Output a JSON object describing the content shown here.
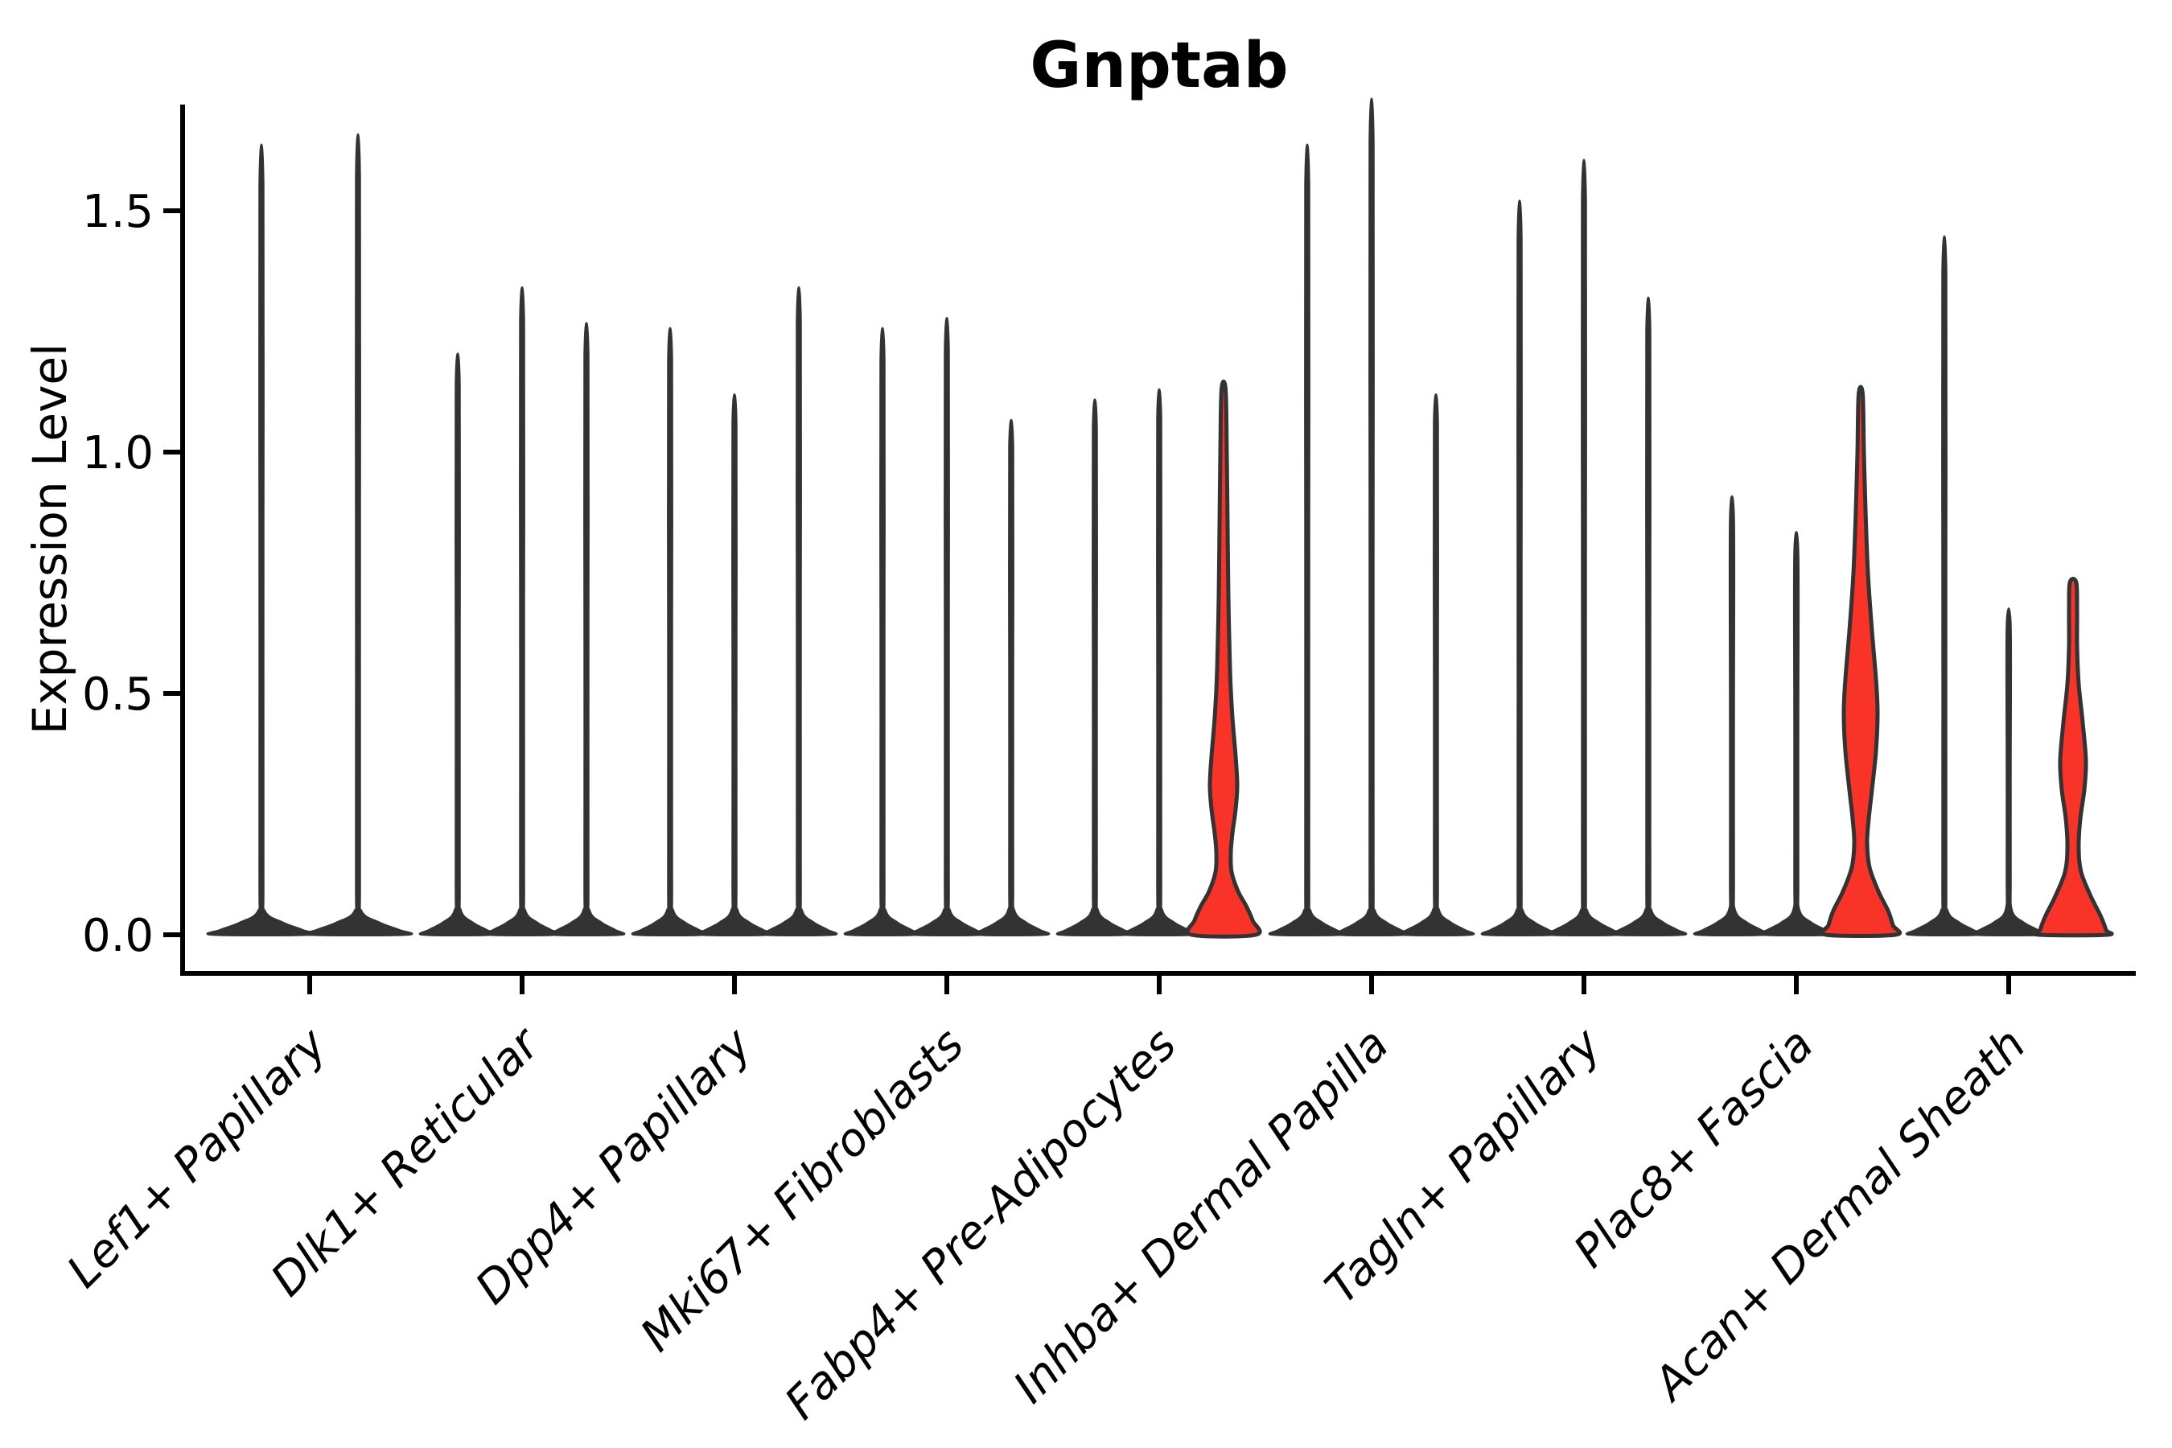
{
  "title": "Gnptab",
  "chart_data": {
    "type": "violin",
    "title": "Gnptab",
    "xlabel": "",
    "ylabel": "Expression Level",
    "ylim": [
      0,
      1.72
    ],
    "yticks": [
      0.0,
      0.5,
      1.0,
      1.5
    ],
    "ytick_labels": [
      "0.0",
      "0.5",
      "1.0",
      "1.5"
    ],
    "grid": false,
    "legend": "none",
    "background": "#ffffff",
    "categories": [
      "Lef1+ Papillary",
      "Dlk1+ Reticular",
      "Dpp4+ Papillary",
      "Mki67+ Fibroblasts",
      "Fabp4+ Pre-Adipocytes",
      "Inhba+ Dermal Papilla",
      "Tagln+ Papillary",
      "Plac8+ Fascia",
      "Acan+ Dermal Sheath"
    ],
    "description": "Violin plot of Gnptab expression; each category holds 2-3 violins (one per replicate). Most distributions collapse to a flat base at 0 with a thin spike to the maximum. Three violins (marked highlighted) show a visible red-filled density bulge.",
    "groups": [
      {
        "category": "Lef1+ Papillary",
        "violins": [
          {
            "max": 1.55,
            "highlighted": false
          },
          {
            "max": 1.57,
            "highlighted": false
          }
        ]
      },
      {
        "category": "Dlk1+ Reticular",
        "violins": [
          {
            "max": 1.14,
            "highlighted": false
          },
          {
            "max": 1.27,
            "highlighted": false
          },
          {
            "max": 1.2,
            "highlighted": false
          }
        ]
      },
      {
        "category": "Dpp4+ Papillary",
        "violins": [
          {
            "max": 1.19,
            "highlighted": false
          },
          {
            "max": 1.06,
            "highlighted": false
          },
          {
            "max": 1.27,
            "highlighted": false
          }
        ]
      },
      {
        "category": "Mki67+ Fibroblasts",
        "violins": [
          {
            "max": 1.19,
            "highlighted": false
          },
          {
            "max": 1.21,
            "highlighted": false
          },
          {
            "max": 1.01,
            "highlighted": false
          }
        ]
      },
      {
        "category": "Fabp4+ Pre-Adipocytes",
        "violins": [
          {
            "max": 1.05,
            "highlighted": false
          },
          {
            "max": 1.07,
            "highlighted": false
          },
          {
            "max": 1.13,
            "highlighted": true,
            "profile": [
              [
                1.13,
                2.5
              ],
              [
                1.0,
                4
              ],
              [
                0.85,
                5
              ],
              [
                0.7,
                6
              ],
              [
                0.55,
                8
              ],
              [
                0.45,
                11
              ],
              [
                0.37,
                15
              ],
              [
                0.31,
                17
              ],
              [
                0.26,
                15
              ],
              [
                0.21,
                11
              ],
              [
                0.17,
                9
              ],
              [
                0.13,
                10
              ],
              [
                0.09,
                18
              ],
              [
                0.06,
                28
              ],
              [
                0.03,
                36
              ],
              [
                0.0,
                40
              ]
            ]
          }
        ]
      },
      {
        "category": "Inhba+ Dermal Papilla",
        "violins": [
          {
            "max": 1.55,
            "highlighted": false
          },
          {
            "max": 1.64,
            "highlighted": false
          },
          {
            "max": 1.06,
            "highlighted": false
          }
        ]
      },
      {
        "category": "Tagln+ Papillary",
        "violins": [
          {
            "max": 1.44,
            "highlighted": false
          },
          {
            "max": 1.52,
            "highlighted": false
          },
          {
            "max": 1.25,
            "highlighted": false
          }
        ]
      },
      {
        "category": "Plac8+ Fascia",
        "violins": [
          {
            "max": 0.86,
            "highlighted": false
          },
          {
            "max": 0.79,
            "highlighted": false
          },
          {
            "max": 1.12,
            "highlighted": true,
            "profile": [
              [
                1.12,
                2.5
              ],
              [
                1.0,
                4
              ],
              [
                0.88,
                6
              ],
              [
                0.75,
                9
              ],
              [
                0.63,
                14
              ],
              [
                0.53,
                19
              ],
              [
                0.46,
                21
              ],
              [
                0.38,
                19
              ],
              [
                0.3,
                14
              ],
              [
                0.24,
                10
              ],
              [
                0.19,
                8
              ],
              [
                0.14,
                11
              ],
              [
                0.09,
                22
              ],
              [
                0.05,
                34
              ],
              [
                0.02,
                40
              ],
              [
                0.0,
                43
              ]
            ]
          }
        ]
      },
      {
        "category": "Acan+ Dermal Sheath",
        "violins": [
          {
            "max": 1.37,
            "highlighted": false
          },
          {
            "max": 0.64,
            "highlighted": false
          },
          {
            "max": 0.73,
            "highlighted": true,
            "profile": [
              [
                0.73,
                4
              ],
              [
                0.67,
                5
              ],
              [
                0.6,
                5
              ],
              [
                0.52,
                7
              ],
              [
                0.44,
                12
              ],
              [
                0.36,
                16
              ],
              [
                0.3,
                14
              ],
              [
                0.24,
                9
              ],
              [
                0.18,
                7
              ],
              [
                0.13,
                10
              ],
              [
                0.08,
                22
              ],
              [
                0.04,
                34
              ],
              [
                0.01,
                41
              ],
              [
                0.0,
                42
              ]
            ]
          }
        ]
      }
    ],
    "colors": {
      "highlight_fill": "#F93328",
      "violin_stroke": "#333333",
      "violin_fill_plain": "#333333",
      "axis": "#000000",
      "text": "#000000"
    }
  }
}
